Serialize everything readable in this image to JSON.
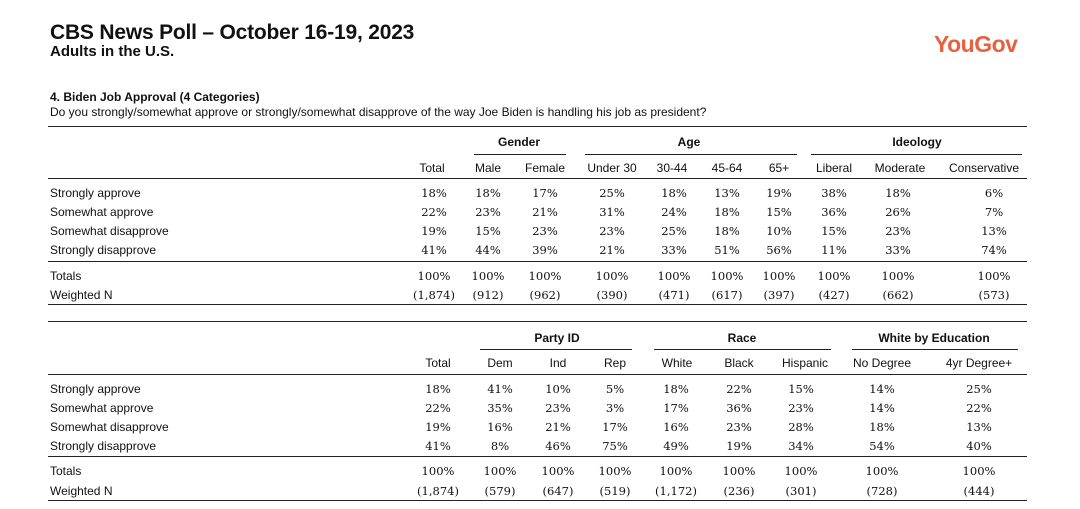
{
  "header": {
    "title": "CBS News Poll – October 16-19, 2023",
    "subtitle": "Adults in the U.S.",
    "logo_text": "YouGov",
    "logo_color": "#e9603f"
  },
  "question": {
    "title": "4. Biden Job Approval (4 Categories)",
    "text": "Do you strongly/somewhat approve or strongly/somewhat disapprove of the way Joe Biden is handling his job as president?"
  },
  "rows": [
    "Strongly approve",
    "Somewhat approve",
    "Somewhat disapprove",
    "Strongly disapprove"
  ],
  "totals_label": "Totals",
  "weighted_label": "Weighted N",
  "table1": {
    "groups": [
      "Gender",
      "Age",
      "Ideology"
    ],
    "columns": [
      "Total",
      "Male",
      "Female",
      "Under 30",
      "30-44",
      "45-64",
      "65+",
      "Liberal",
      "Moderate",
      "Conservative"
    ],
    "data": [
      [
        "18%",
        "18%",
        "17%",
        "25%",
        "18%",
        "13%",
        "19%",
        "38%",
        "18%",
        "6%"
      ],
      [
        "22%",
        "23%",
        "21%",
        "31%",
        "24%",
        "18%",
        "15%",
        "36%",
        "26%",
        "7%"
      ],
      [
        "19%",
        "15%",
        "23%",
        "23%",
        "25%",
        "18%",
        "10%",
        "15%",
        "23%",
        "13%"
      ],
      [
        "41%",
        "44%",
        "39%",
        "21%",
        "33%",
        "51%",
        "56%",
        "11%",
        "33%",
        "74%"
      ]
    ],
    "totals": [
      "100%",
      "100%",
      "100%",
      "100%",
      "100%",
      "100%",
      "100%",
      "100%",
      "100%",
      "100%"
    ],
    "weighted_n": [
      "(1,874)",
      "(912)",
      "(962)",
      "(390)",
      "(471)",
      "(617)",
      "(397)",
      "(427)",
      "(662)",
      "(573)"
    ]
  },
  "table2": {
    "groups": [
      "Party ID",
      "Race",
      "White by Education"
    ],
    "columns": [
      "Total",
      "Dem",
      "Ind",
      "Rep",
      "White",
      "Black",
      "Hispanic",
      "No Degree",
      "4yr Degree+"
    ],
    "data": [
      [
        "18%",
        "41%",
        "10%",
        "5%",
        "18%",
        "22%",
        "15%",
        "14%",
        "25%"
      ],
      [
        "22%",
        "35%",
        "23%",
        "3%",
        "17%",
        "36%",
        "23%",
        "14%",
        "22%"
      ],
      [
        "19%",
        "16%",
        "21%",
        "17%",
        "16%",
        "23%",
        "28%",
        "18%",
        "13%"
      ],
      [
        "41%",
        "8%",
        "46%",
        "75%",
        "49%",
        "19%",
        "34%",
        "54%",
        "40%"
      ]
    ],
    "totals": [
      "100%",
      "100%",
      "100%",
      "100%",
      "100%",
      "100%",
      "100%",
      "100%",
      "100%"
    ],
    "weighted_n": [
      "(1,874)",
      "(579)",
      "(647)",
      "(519)",
      "(1,172)",
      "(236)",
      "(301)",
      "(728)",
      "(444)"
    ]
  }
}
